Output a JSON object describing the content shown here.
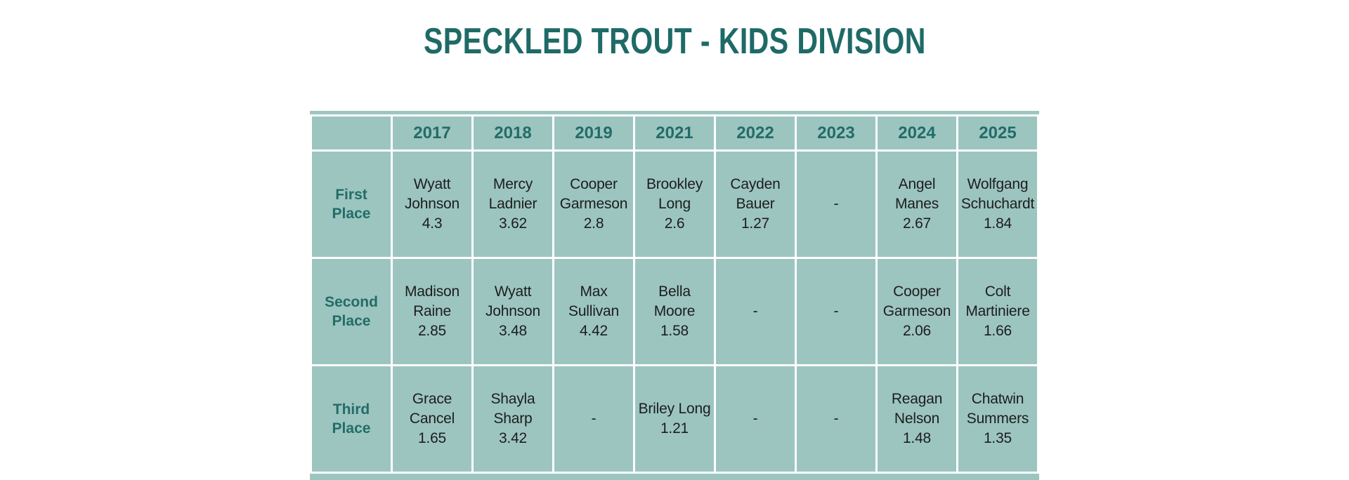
{
  "title": "SPECKLED TROUT - KIDS DIVISION",
  "colors": {
    "title_teal": "#1e6a67",
    "table_text_teal": "#236c68",
    "cell_background": "#9cc5c0",
    "body_text": "#1d1d1d",
    "page_background": "#ffffff"
  },
  "table": {
    "corner": "",
    "years": [
      "2017",
      "2018",
      "2019",
      "2021",
      "2022",
      "2023",
      "2024",
      "2025"
    ],
    "rows": [
      {
        "label": "First Place",
        "entries": [
          {
            "name": "Wyatt Johnson",
            "value": "4.3"
          },
          {
            "name": "Mercy Ladnier",
            "value": "3.62"
          },
          {
            "name": "Cooper Garmeson",
            "value": "2.8"
          },
          {
            "name": "Brookley Long",
            "value": "2.6"
          },
          {
            "name": "Cayden Bauer",
            "value": "1.27"
          },
          {
            "name": "",
            "value": "-"
          },
          {
            "name": "Angel Manes",
            "value": "2.67"
          },
          {
            "name": "Wolfgang Schuchardt",
            "value": "1.84"
          }
        ]
      },
      {
        "label": "Second Place",
        "entries": [
          {
            "name": "Madison Raine",
            "value": "2.85"
          },
          {
            "name": "Wyatt Johnson",
            "value": "3.48"
          },
          {
            "name": "Max Sullivan",
            "value": "4.42"
          },
          {
            "name": "Bella Moore",
            "value": "1.58"
          },
          {
            "name": "",
            "value": "-"
          },
          {
            "name": "",
            "value": "-"
          },
          {
            "name": "Cooper Garmeson",
            "value": "2.06"
          },
          {
            "name": "Colt Martiniere",
            "value": "1.66"
          }
        ]
      },
      {
        "label": "Third Place",
        "entries": [
          {
            "name": "Grace Cancel",
            "value": "1.65"
          },
          {
            "name": "Shayla Sharp",
            "value": "3.42"
          },
          {
            "name": "",
            "value": "-"
          },
          {
            "name": "Briley Long",
            "value": "1.21"
          },
          {
            "name": "",
            "value": "-"
          },
          {
            "name": "",
            "value": "-"
          },
          {
            "name": "Reagan Nelson",
            "value": "1.48"
          },
          {
            "name": "Chatwin Summers",
            "value": "1.35"
          }
        ]
      }
    ]
  }
}
